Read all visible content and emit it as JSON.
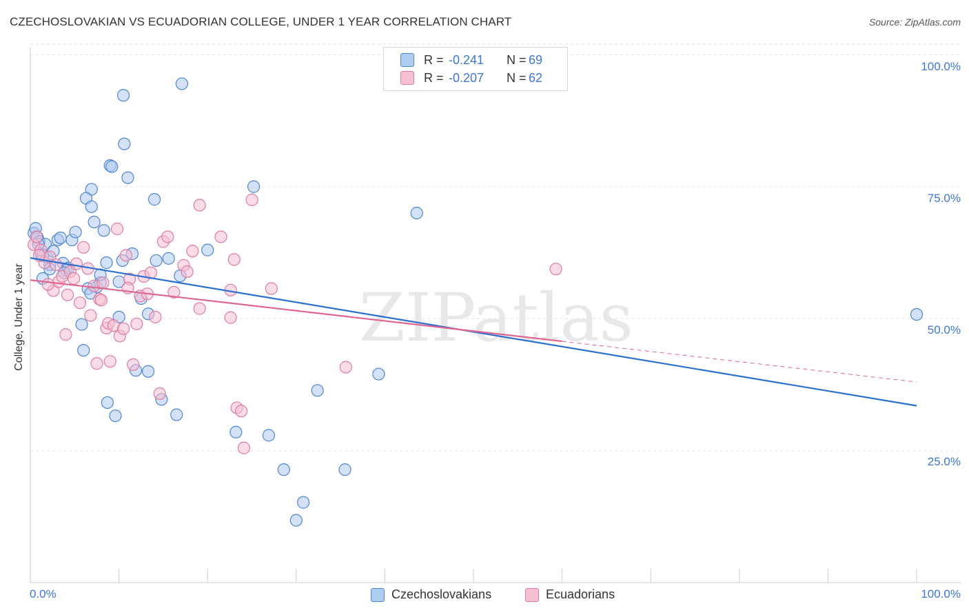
{
  "title": "CZECHOSLOVAKIAN VS ECUADORIAN COLLEGE, UNDER 1 YEAR CORRELATION CHART",
  "source": "Source: ZipAtlas.com",
  "watermark": "ZIPatlas",
  "legend": {
    "rows": [
      {
        "r_label": "R =",
        "r_value": "-0.241",
        "n_label": "N =",
        "n_value": "69"
      },
      {
        "r_label": "R =",
        "r_value": "-0.207",
        "n_label": "N =",
        "n_value": "62"
      }
    ]
  },
  "bottom_legend": [
    "Czechoslovakians",
    "Ecuadorians"
  ],
  "colors": {
    "blue_fill": "#aecbf0",
    "blue_stroke": "#4d86d6",
    "blue_line": "#2a6fd1",
    "pink_fill": "#f6c0d2",
    "pink_stroke": "#e07ba0",
    "pink_line": "#e0648f",
    "grid": "#e2e2e2",
    "tick_text": "#3b78d8"
  },
  "chart_data": {
    "type": "scatter",
    "title": "CZECHOSLOVAKIAN VS ECUADORIAN COLLEGE, UNDER 1 YEAR CORRELATION CHART",
    "xlabel": "",
    "ylabel": "College, Under 1 year",
    "xlim": [
      0,
      100
    ],
    "ylim": [
      0,
      102
    ],
    "x_tick_labels": [
      "0.0%",
      "100.0%"
    ],
    "y_ticks": [
      25,
      50,
      75,
      100
    ],
    "y_tick_labels": [
      "25.0%",
      "50.0%",
      "75.0%",
      "100.0%"
    ],
    "grid": true,
    "legend_position": "top-center",
    "series": [
      {
        "name": "Czechoslovakians",
        "r": -0.241,
        "n": 69,
        "trend": {
          "x0": 0,
          "y0": 61.5,
          "x1": 100,
          "y1": 33.5
        },
        "points": [
          [
            0.4,
            66.2
          ],
          [
            0.6,
            67.1
          ],
          [
            0.8,
            65.4
          ],
          [
            1.0,
            64.6
          ],
          [
            1.2,
            62.3
          ],
          [
            1.4,
            57.6
          ],
          [
            1.7,
            64.1
          ],
          [
            1.9,
            61.6
          ],
          [
            2.2,
            60.2
          ],
          [
            2.6,
            62.8
          ],
          [
            3.1,
            64.9
          ],
          [
            3.4,
            65.3
          ],
          [
            3.7,
            60.5
          ],
          [
            4.0,
            59.2
          ],
          [
            4.3,
            59.6
          ],
          [
            4.7,
            64.9
          ],
          [
            5.1,
            66.4
          ],
          [
            5.8,
            48.9
          ],
          [
            6.0,
            44.0
          ],
          [
            6.5,
            55.7
          ],
          [
            6.9,
            74.5
          ],
          [
            6.3,
            72.8
          ],
          [
            6.9,
            71.2
          ],
          [
            7.2,
            68.3
          ],
          [
            7.5,
            56.0
          ],
          [
            7.9,
            56.8
          ],
          [
            7.9,
            58.3
          ],
          [
            8.3,
            66.7
          ],
          [
            8.6,
            60.6
          ],
          [
            9.0,
            79.0
          ],
          [
            9.2,
            78.8
          ],
          [
            8.7,
            34.1
          ],
          [
            9.6,
            31.6
          ],
          [
            10.0,
            57.0
          ],
          [
            10.4,
            61.0
          ],
          [
            10.5,
            92.3
          ],
          [
            10.6,
            83.1
          ],
          [
            11.0,
            76.7
          ],
          [
            11.5,
            62.3
          ],
          [
            11.9,
            40.2
          ],
          [
            12.5,
            53.8
          ],
          [
            13.3,
            50.9
          ],
          [
            13.3,
            40.0
          ],
          [
            14.0,
            72.6
          ],
          [
            14.2,
            61.0
          ],
          [
            14.8,
            34.7
          ],
          [
            15.6,
            61.4
          ],
          [
            16.5,
            31.8
          ],
          [
            16.9,
            58.1
          ],
          [
            17.1,
            94.5
          ],
          [
            20.0,
            63.0
          ],
          [
            23.2,
            28.5
          ],
          [
            25.2,
            75.0
          ],
          [
            26.9,
            27.9
          ],
          [
            28.6,
            21.4
          ],
          [
            30.0,
            11.8
          ],
          [
            30.8,
            15.2
          ],
          [
            32.4,
            36.4
          ],
          [
            35.5,
            21.4
          ],
          [
            39.3,
            39.5
          ],
          [
            43.6,
            70.0
          ],
          [
            49.1,
            100.0
          ],
          [
            100.0,
            50.8
          ],
          [
            0.9,
            64.1
          ],
          [
            1.4,
            61.9
          ],
          [
            2.2,
            59.4
          ],
          [
            3.8,
            58.7
          ],
          [
            6.8,
            54.8
          ],
          [
            10.0,
            50.3
          ]
        ]
      },
      {
        "name": "Ecuadorians",
        "r": -0.207,
        "n": 62,
        "trend": {
          "x0": 0,
          "y0": 57.3,
          "x1": 60,
          "y1": 45.7,
          "dash_x1": 100,
          "dash_y1": 38.0
        },
        "points": [
          [
            0.4,
            64.0
          ],
          [
            0.7,
            65.5
          ],
          [
            1.2,
            63.0
          ],
          [
            1.6,
            60.6
          ],
          [
            2.2,
            61.7
          ],
          [
            2.6,
            55.3
          ],
          [
            2.9,
            60.2
          ],
          [
            3.2,
            57.0
          ],
          [
            3.6,
            58.0
          ],
          [
            4.0,
            47.0
          ],
          [
            4.5,
            58.9
          ],
          [
            4.9,
            57.6
          ],
          [
            5.2,
            60.4
          ],
          [
            5.6,
            53.0
          ],
          [
            6.0,
            63.5
          ],
          [
            6.5,
            59.5
          ],
          [
            6.8,
            50.6
          ],
          [
            7.2,
            56.2
          ],
          [
            7.5,
            41.5
          ],
          [
            7.8,
            53.7
          ],
          [
            8.2,
            56.8
          ],
          [
            8.6,
            48.2
          ],
          [
            8.8,
            49.1
          ],
          [
            9.0,
            41.9
          ],
          [
            9.4,
            48.7
          ],
          [
            9.8,
            67.0
          ],
          [
            10.1,
            46.7
          ],
          [
            10.5,
            48.1
          ],
          [
            10.8,
            62.0
          ],
          [
            11.2,
            57.5
          ],
          [
            11.6,
            41.3
          ],
          [
            12.0,
            49.0
          ],
          [
            12.4,
            54.3
          ],
          [
            12.8,
            58.0
          ],
          [
            13.2,
            54.7
          ],
          [
            13.6,
            58.7
          ],
          [
            14.1,
            50.3
          ],
          [
            14.6,
            35.8
          ],
          [
            15.0,
            64.6
          ],
          [
            15.5,
            65.5
          ],
          [
            16.2,
            55.0
          ],
          [
            17.3,
            60.1
          ],
          [
            17.7,
            58.9
          ],
          [
            18.3,
            62.8
          ],
          [
            19.1,
            51.9
          ],
          [
            19.1,
            71.5
          ],
          [
            21.5,
            65.5
          ],
          [
            22.6,
            50.2
          ],
          [
            22.6,
            55.4
          ],
          [
            23.0,
            61.2
          ],
          [
            23.3,
            33.1
          ],
          [
            23.8,
            32.5
          ],
          [
            24.1,
            25.5
          ],
          [
            25.0,
            72.5
          ],
          [
            27.2,
            55.7
          ],
          [
            35.6,
            40.8
          ],
          [
            59.3,
            59.4
          ],
          [
            1.0,
            62.0
          ],
          [
            2.0,
            56.5
          ],
          [
            4.2,
            54.5
          ],
          [
            8.0,
            53.5
          ],
          [
            11.0,
            55.8
          ]
        ]
      }
    ]
  }
}
